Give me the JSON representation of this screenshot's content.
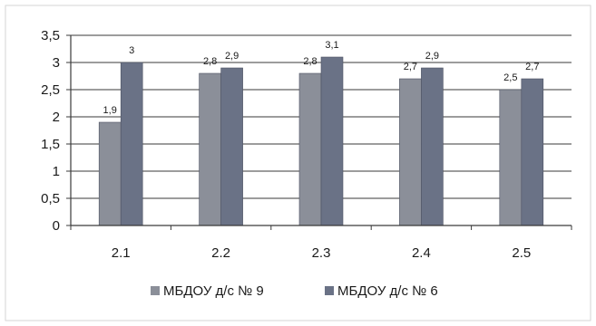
{
  "chart_data": {
    "type": "bar",
    "title": "",
    "xlabel": "",
    "ylabel": "",
    "categories": [
      "2.1",
      "2.2",
      "2.3",
      "2.4",
      "2.5"
    ],
    "series": [
      {
        "name": "МБДОУ д/с № 9",
        "values": [
          1.9,
          2.8,
          2.8,
          2.7,
          2.5
        ],
        "labels": [
          "1,9",
          "2,8",
          "2,8",
          "2,7",
          "2,5"
        ],
        "color": "#8b8f99"
      },
      {
        "name": "МБДОУ д/с № 6",
        "values": [
          3,
          2.9,
          3.1,
          2.9,
          2.7
        ],
        "labels": [
          "3",
          "2,9",
          "3,1",
          "2,9",
          "2,7"
        ],
        "color": "#6a7286"
      }
    ],
    "ylim": [
      0,
      3.5
    ],
    "yticks": [
      0,
      0.5,
      1,
      1.5,
      2,
      2.5,
      3,
      3.5
    ],
    "ytick_labels": [
      "0",
      "0,5",
      "1",
      "1,5",
      "2",
      "2,5",
      "3",
      "3,5"
    ],
    "grid": true,
    "legend": "bottom"
  }
}
